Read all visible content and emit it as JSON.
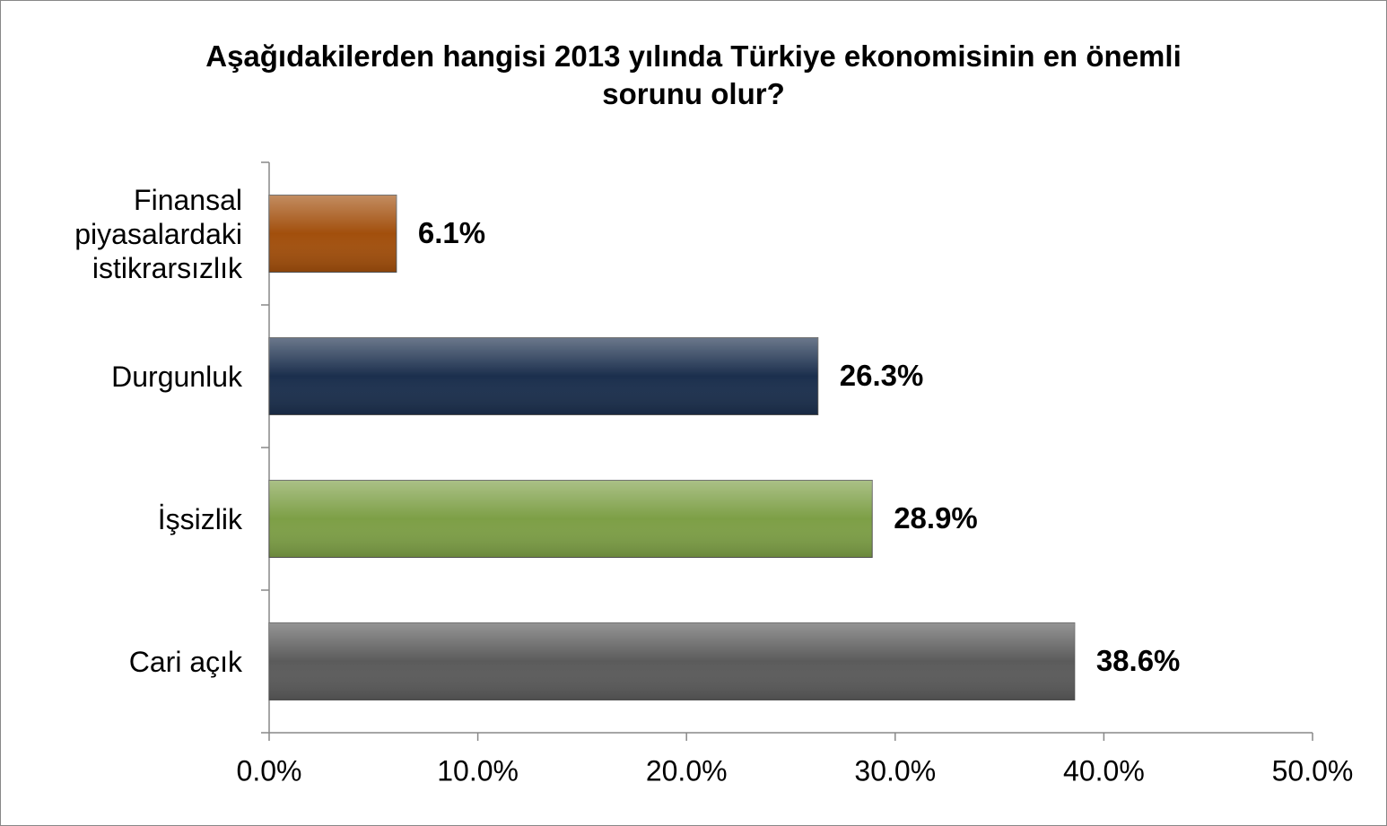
{
  "chart_data": {
    "type": "bar",
    "orientation": "horizontal",
    "title": "Aşağıdakilerden hangisi 2013 yılında Türkiye ekonomisinin en önemli sorunu olur?",
    "categories": [
      "Finansal piyasalardaki istikrarsızlık",
      "Durgunluk",
      "İşsizlik",
      "Cari açık"
    ],
    "values": [
      6.1,
      26.3,
      28.9,
      38.6
    ],
    "value_labels": [
      "6.1%",
      "26.3%",
      "28.9%",
      "38.6%"
    ],
    "colors": [
      "#a24f0c",
      "#1b2f4d",
      "#7d9f46",
      "#5b5b5b"
    ],
    "xlim": [
      0,
      50
    ],
    "xticks": [
      {
        "value": 0,
        "label": "0.0%"
      },
      {
        "value": 10,
        "label": "10.0%"
      },
      {
        "value": 20,
        "label": "20.0%"
      },
      {
        "value": 30,
        "label": "30.0%"
      },
      {
        "value": 40,
        "label": "40.0%"
      },
      {
        "value": 50,
        "label": "50.0%"
      }
    ],
    "grid": false
  }
}
